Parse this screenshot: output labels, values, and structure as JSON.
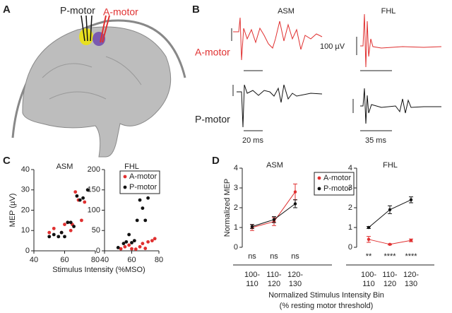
{
  "panel_labels": [
    "A",
    "B",
    "C",
    "D"
  ],
  "panel_a": {
    "labels": [
      "P-motor",
      "A-motor"
    ]
  },
  "panel_b": {
    "columns": [
      "ASM",
      "FHL"
    ],
    "rows": [
      "A-motor",
      "P-motor"
    ],
    "voltage_scale": "100 µV",
    "time_scales": [
      "20 ms",
      "35 ms"
    ]
  },
  "panel_c": {
    "x_label": "Stimulus Intensity (%MSO)"
  },
  "panel_d": {
    "x_label": [
      "Normalized Stimulus Intensity Bin",
      "(% resting motor threshold)"
    ]
  },
  "chart_data": [
    {
      "type": "scatter",
      "title": "ASM",
      "y_label": "MEP (µV)",
      "xlim": [
        40,
        80
      ],
      "ylim": [
        0,
        40
      ],
      "xticks": [
        40,
        60,
        80
      ],
      "yticks": [
        0,
        10,
        20,
        30,
        40
      ],
      "series": [
        {
          "name": "A-motor",
          "color": "#e03030",
          "x": [
            50,
            53,
            58,
            60,
            62,
            64,
            65,
            67,
            69,
            71,
            73
          ],
          "values": [
            9,
            11,
            9,
            13,
            14,
            10,
            13,
            29,
            25,
            15,
            24
          ]
        },
        {
          "name": "P-motor",
          "color": "#111111",
          "x": [
            50,
            53,
            56,
            58,
            60,
            62,
            64,
            66,
            68,
            70,
            72,
            75
          ],
          "values": [
            7,
            8,
            7,
            9,
            7,
            14,
            14,
            12,
            27,
            25,
            26,
            30
          ]
        }
      ]
    },
    {
      "type": "scatter",
      "title": "FHL",
      "legend": "upper right",
      "xlim": [
        40,
        80
      ],
      "ylim": [
        0,
        200
      ],
      "xticks": [
        40,
        60,
        80
      ],
      "yticks": [
        0,
        50,
        100,
        150,
        200
      ],
      "series": [
        {
          "name": "A-motor",
          "color": "#e03030",
          "x": [
            52,
            55,
            58,
            60,
            63,
            66,
            68,
            70,
            72,
            75,
            77
          ],
          "values": [
            5,
            10,
            14,
            5,
            4,
            10,
            18,
            6,
            22,
            25,
            30
          ]
        },
        {
          "name": "P-motor",
          "color": "#111111",
          "x": [
            50,
            54,
            56,
            58,
            60,
            62,
            64,
            66,
            68,
            70,
            72,
            75,
            77
          ],
          "values": [
            8,
            18,
            22,
            40,
            20,
            25,
            75,
            125,
            105,
            75,
            130,
            155,
            172
          ]
        }
      ]
    },
    {
      "type": "line",
      "title": "ASM",
      "y_label": "Normalized MEP",
      "legend": "upper right",
      "categories": [
        "100-110",
        "110-120",
        "120-130"
      ],
      "ylim": [
        0,
        4
      ],
      "yticks": [
        0,
        1,
        2,
        3,
        4
      ],
      "annotations": [
        "ns",
        "ns",
        "ns"
      ],
      "series": [
        {
          "name": "A-motor",
          "color": "#e03030",
          "values": [
            1.0,
            1.3,
            2.8
          ],
          "errors": [
            0.15,
            0.2,
            0.4
          ]
        },
        {
          "name": "P-motor",
          "color": "#111111",
          "values": [
            1.05,
            1.4,
            2.2
          ],
          "errors": [
            0.1,
            0.15,
            0.2
          ]
        }
      ]
    },
    {
      "type": "line",
      "title": "FHL",
      "categories": [
        "100-110",
        "110-120",
        "120-130"
      ],
      "ylim": [
        0,
        4
      ],
      "yticks": [
        0,
        1,
        2,
        3,
        4
      ],
      "annotations": [
        "**",
        "****",
        "****"
      ],
      "series": [
        {
          "name": "A-motor",
          "color": "#e03030",
          "values": [
            0.4,
            0.15,
            0.35
          ],
          "errors": [
            0.15,
            0.03,
            0.07
          ]
        },
        {
          "name": "P-motor",
          "color": "#111111",
          "values": [
            1.0,
            1.9,
            2.4
          ],
          "errors": [
            0.05,
            0.2,
            0.15
          ]
        }
      ]
    }
  ]
}
